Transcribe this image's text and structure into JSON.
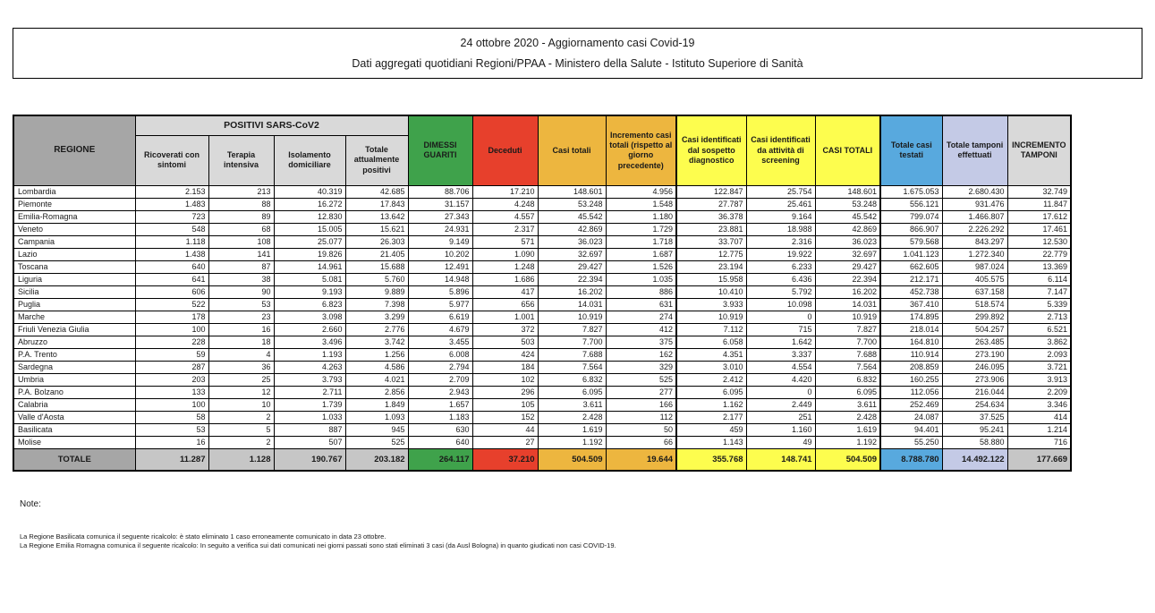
{
  "title": {
    "line1": "24 ottobre 2020 - Aggiornamento casi Covid-19",
    "line2": "Dati aggregati quotidiani Regioni/PPAA - Ministero della Salute - Istituto Superiore di Sanità"
  },
  "table": {
    "region_header": "REGIONE",
    "group_header": "POSITIVI SARS-CoV2",
    "columns": [
      {
        "label": "Ricoverati con sintomi"
      },
      {
        "label": "Terapia intensiva"
      },
      {
        "label": "Isolamento domiciliare"
      },
      {
        "label": "Totale attualmente positivi"
      },
      {
        "label": "DIMESSI GUARITI"
      },
      {
        "label": "Deceduti"
      },
      {
        "label": "Casi totali"
      },
      {
        "label": "Incremento casi totali (rispetto al giorno precedente)"
      },
      {
        "label": "Casi identificati dal sospetto diagnostico"
      },
      {
        "label": "Casi identificati da attività di screening"
      },
      {
        "label": "CASI TOTALI"
      },
      {
        "label": "Totale casi testati"
      },
      {
        "label": "Totale tamponi effettuati"
      },
      {
        "label": "INCREMENTO TAMPONI"
      }
    ],
    "rows": [
      [
        "Lombardia",
        "2.153",
        "213",
        "40.319",
        "42.685",
        "88.706",
        "17.210",
        "148.601",
        "4.956",
        "122.847",
        "25.754",
        "148.601",
        "1.675.053",
        "2.680.430",
        "32.749"
      ],
      [
        "Piemonte",
        "1.483",
        "88",
        "16.272",
        "17.843",
        "31.157",
        "4.248",
        "53.248",
        "1.548",
        "27.787",
        "25.461",
        "53.248",
        "556.121",
        "931.476",
        "11.847"
      ],
      [
        "Emilia-Romagna",
        "723",
        "89",
        "12.830",
        "13.642",
        "27.343",
        "4.557",
        "45.542",
        "1.180",
        "36.378",
        "9.164",
        "45.542",
        "799.074",
        "1.466.807",
        "17.612"
      ],
      [
        "Veneto",
        "548",
        "68",
        "15.005",
        "15.621",
        "24.931",
        "2.317",
        "42.869",
        "1.729",
        "23.881",
        "18.988",
        "42.869",
        "866.907",
        "2.226.292",
        "17.461"
      ],
      [
        "Campania",
        "1.118",
        "108",
        "25.077",
        "26.303",
        "9.149",
        "571",
        "36.023",
        "1.718",
        "33.707",
        "2.316",
        "36.023",
        "579.568",
        "843.297",
        "12.530"
      ],
      [
        "Lazio",
        "1.438",
        "141",
        "19.826",
        "21.405",
        "10.202",
        "1.090",
        "32.697",
        "1.687",
        "12.775",
        "19.922",
        "32.697",
        "1.041.123",
        "1.272.340",
        "22.779"
      ],
      [
        "Toscana",
        "640",
        "87",
        "14.961",
        "15.688",
        "12.491",
        "1.248",
        "29.427",
        "1.526",
        "23.194",
        "6.233",
        "29.427",
        "662.605",
        "987.024",
        "13.369"
      ],
      [
        "Liguria",
        "641",
        "38",
        "5.081",
        "5.760",
        "14.948",
        "1.686",
        "22.394",
        "1.035",
        "15.958",
        "6.436",
        "22.394",
        "212.171",
        "405.575",
        "6.114"
      ],
      [
        "Sicilia",
        "606",
        "90",
        "9.193",
        "9.889",
        "5.896",
        "417",
        "16.202",
        "886",
        "10.410",
        "5.792",
        "16.202",
        "452.738",
        "637.158",
        "7.147"
      ],
      [
        "Puglia",
        "522",
        "53",
        "6.823",
        "7.398",
        "5.977",
        "656",
        "14.031",
        "631",
        "3.933",
        "10.098",
        "14.031",
        "367.410",
        "518.574",
        "5.339"
      ],
      [
        "Marche",
        "178",
        "23",
        "3.098",
        "3.299",
        "6.619",
        "1.001",
        "10.919",
        "274",
        "10.919",
        "0",
        "10.919",
        "174.895",
        "299.892",
        "2.713"
      ],
      [
        "Friuli Venezia Giulia",
        "100",
        "16",
        "2.660",
        "2.776",
        "4.679",
        "372",
        "7.827",
        "412",
        "7.112",
        "715",
        "7.827",
        "218.014",
        "504.257",
        "6.521"
      ],
      [
        "Abruzzo",
        "228",
        "18",
        "3.496",
        "3.742",
        "3.455",
        "503",
        "7.700",
        "375",
        "6.058",
        "1.642",
        "7.700",
        "164.810",
        "263.485",
        "3.862"
      ],
      [
        "P.A. Trento",
        "59",
        "4",
        "1.193",
        "1.256",
        "6.008",
        "424",
        "7.688",
        "162",
        "4.351",
        "3.337",
        "7.688",
        "110.914",
        "273.190",
        "2.093"
      ],
      [
        "Sardegna",
        "287",
        "36",
        "4.263",
        "4.586",
        "2.794",
        "184",
        "7.564",
        "329",
        "3.010",
        "4.554",
        "7.564",
        "208.859",
        "246.095",
        "3.721"
      ],
      [
        "Umbria",
        "203",
        "25",
        "3.793",
        "4.021",
        "2.709",
        "102",
        "6.832",
        "525",
        "2.412",
        "4.420",
        "6.832",
        "160.255",
        "273.906",
        "3.913"
      ],
      [
        "P.A. Bolzano",
        "133",
        "12",
        "2.711",
        "2.856",
        "2.943",
        "296",
        "6.095",
        "277",
        "6.095",
        "0",
        "6.095",
        "112.056",
        "216.044",
        "2.209"
      ],
      [
        "Calabria",
        "100",
        "10",
        "1.739",
        "1.849",
        "1.657",
        "105",
        "3.611",
        "166",
        "1.162",
        "2.449",
        "3.611",
        "252.469",
        "254.634",
        "3.346"
      ],
      [
        "Valle d'Aosta",
        "58",
        "2",
        "1.033",
        "1.093",
        "1.183",
        "152",
        "2.428",
        "112",
        "2.177",
        "251",
        "2.428",
        "24.087",
        "37.525",
        "414"
      ],
      [
        "Basilicata",
        "53",
        "5",
        "887",
        "945",
        "630",
        "44",
        "1.619",
        "50",
        "459",
        "1.160",
        "1.619",
        "94.401",
        "95.241",
        "1.214"
      ],
      [
        "Molise",
        "16",
        "2",
        "507",
        "525",
        "640",
        "27",
        "1.192",
        "66",
        "1.143",
        "49",
        "1.192",
        "55.250",
        "58.880",
        "716"
      ]
    ],
    "total": [
      "TOTALE",
      "11.287",
      "1.128",
      "190.767",
      "203.182",
      "264.117",
      "37.210",
      "504.509",
      "19.644",
      "355.768",
      "148.741",
      "504.509",
      "8.788.780",
      "14.492.122",
      "177.669"
    ]
  },
  "notes": {
    "title": "Note:",
    "lines": [
      "La Regione Basilicata comunica il seguente ricalcolo: è stato eliminato 1 caso erroneamente comunicato in data 23 ottobre.",
      "La Regione Emilia Romagna comunica il seguente ricalcolo: In seguito a verifica sui dati comunicati nei giorni passati sono stati eliminati 3 casi (da Ausl Bologna) in quanto giudicati non casi COVID-19."
    ]
  },
  "colors": {
    "green": "#3fa24b",
    "red": "#e7402c",
    "orange": "#edb63f",
    "yellow": "#fdfd4e",
    "blue": "#58a9de",
    "lavender": "#c4cae6",
    "gray_dark": "#a6a6a6",
    "gray_light": "#d9d9d9",
    "gray_total": "#c6c6c6"
  }
}
